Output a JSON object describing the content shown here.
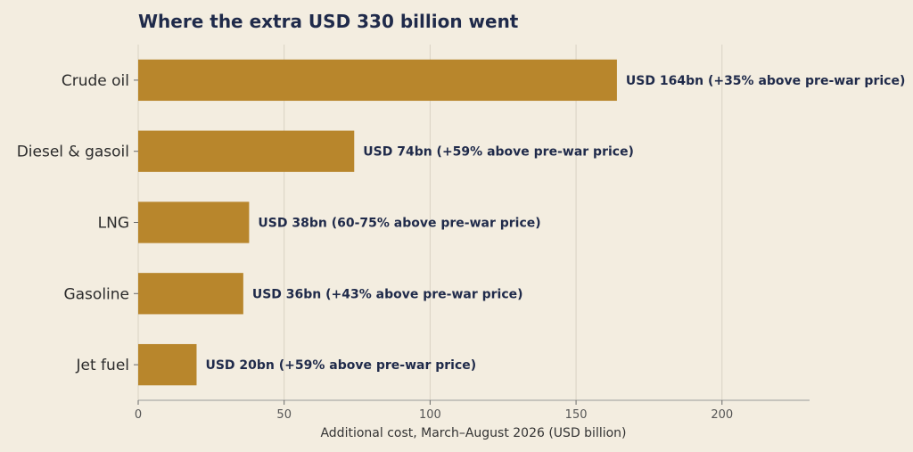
{
  "chart_data": {
    "type": "bar",
    "orientation": "horizontal",
    "title": "Where the extra USD 330 billion went",
    "xlabel": "Additional cost, March–August 2026 (USD billion)",
    "ylabel": "",
    "xlim": [
      0,
      230
    ],
    "xticks": [
      0,
      50,
      100,
      150,
      200
    ],
    "grid": true,
    "categories": [
      "Crude oil",
      "Diesel & gasoil",
      "LNG",
      "Gasoline",
      "Jet fuel"
    ],
    "values": [
      164,
      74,
      38,
      36,
      20
    ],
    "data_labels": [
      "USD 164bn (+35% above pre-war price)",
      "USD 74bn (+59% above pre-war price)",
      "USD 38bn (60-75% above pre-war price)",
      "USD 36bn (+43% above pre-war price)",
      "USD 20bn (+59% above pre-war price)"
    ],
    "colors": {
      "bar": "#b8862c",
      "background": "#f3ede0",
      "title": "#1f2a4a"
    }
  }
}
